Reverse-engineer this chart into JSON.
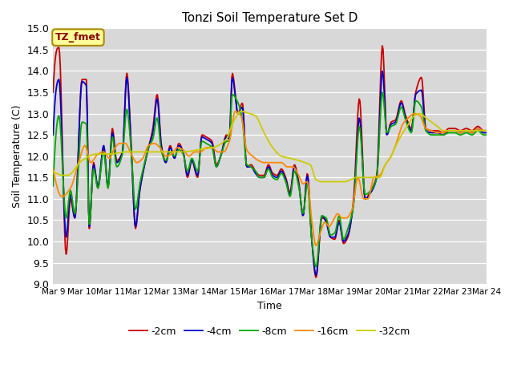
{
  "title": "Tonzi Soil Temperature Set D",
  "xlabel": "Time",
  "ylabel": "Soil Temperature (C)",
  "ylim": [
    9.0,
    15.0
  ],
  "yticks": [
    9.0,
    9.5,
    10.0,
    10.5,
    11.0,
    11.5,
    12.0,
    12.5,
    13.0,
    13.5,
    14.0,
    14.5,
    15.0
  ],
  "xtick_labels": [
    "Mar 9",
    "Mar 10",
    "Mar 11",
    "Mar 12",
    "Mar 13",
    "Mar 14",
    "Mar 15",
    "Mar 16",
    "Mar 17",
    "Mar 18",
    "Mar 19",
    "Mar 20",
    "Mar 21",
    "Mar 22",
    "Mar 23",
    "Mar 24"
  ],
  "legend_labels": [
    "-2cm",
    "-4cm",
    "-8cm",
    "-16cm",
    "-32cm"
  ],
  "line_colors": [
    "#cc0000",
    "#0000cc",
    "#00aa00",
    "#ff8800",
    "#cccc00"
  ],
  "line_widths": [
    1.3,
    1.3,
    1.3,
    1.3,
    1.3
  ],
  "bg_color": "#d8d8d8",
  "annotation_text": "TZ_fmet",
  "annotation_bg": "#ffff99",
  "annotation_border": "#aa8800"
}
